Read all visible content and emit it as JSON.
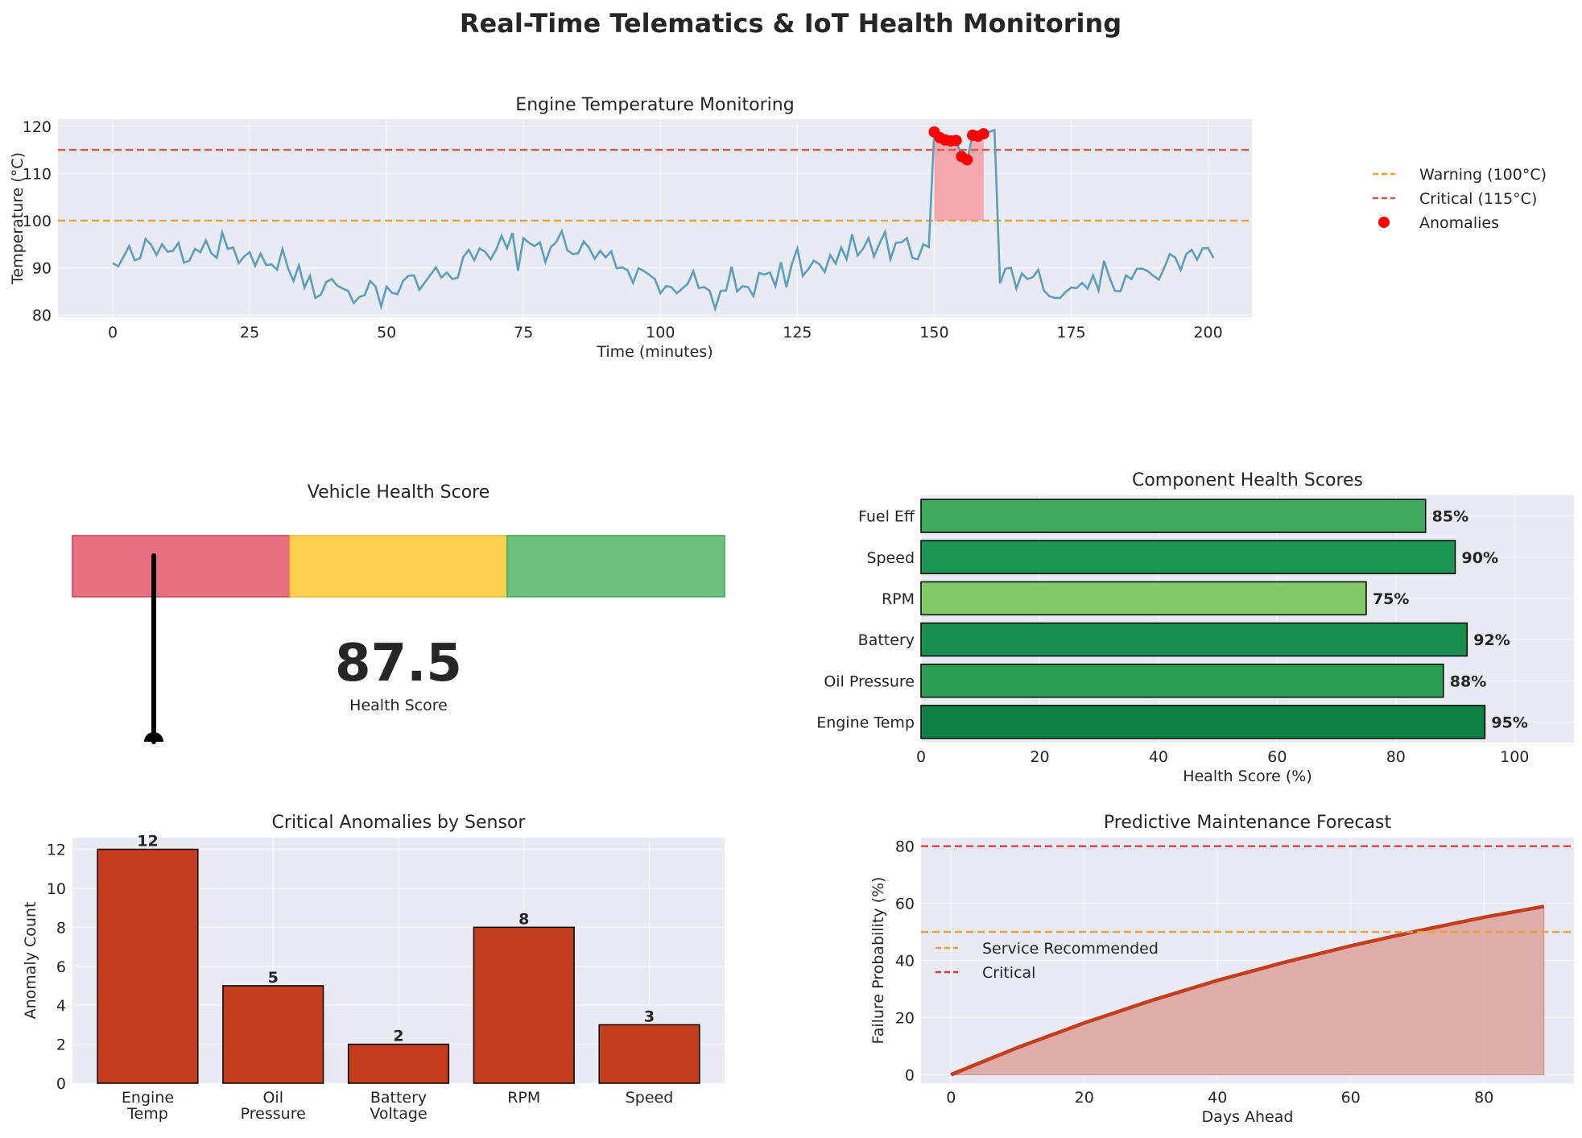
{
  "suptitle": "Real-Time Telematics & IoT Health Monitoring",
  "chart_data": [
    {
      "type": "line",
      "title": "Engine Temperature Monitoring",
      "xlabel": "Time (minutes)",
      "ylabel": "Temperature (°C)",
      "xlim": [
        -10,
        208
      ],
      "ylim": [
        79.5,
        121.5
      ],
      "xticks": [
        0,
        25,
        50,
        75,
        100,
        125,
        150,
        175,
        200
      ],
      "yticks": [
        80,
        90,
        100,
        110,
        120
      ],
      "grid": true,
      "legend_position": "top-right",
      "series_color": "#5b9fc0",
      "values": [
        91.0,
        90.3,
        92.4,
        94.6,
        91.6,
        92.0,
        96.1,
        94.9,
        92.7,
        95.0,
        93.4,
        93.6,
        95.3,
        91.1,
        91.5,
        94.0,
        93.3,
        95.8,
        93.1,
        92.1,
        97.5,
        94.0,
        94.3,
        91.0,
        92.4,
        93.3,
        90.4,
        93.0,
        90.6,
        90.7,
        89.6,
        94.0,
        89.9,
        87.2,
        90.5,
        85.8,
        88.3,
        83.6,
        84.3,
        87.0,
        87.6,
        86.2,
        85.6,
        85.1,
        82.5,
        83.8,
        84.2,
        87.2,
        86.0,
        81.8,
        86.0,
        84.7,
        84.4,
        87.2,
        88.3,
        88.4,
        85.3,
        86.9,
        88.5,
        90.1,
        87.9,
        89.0,
        87.6,
        87.9,
        92.3,
        93.8,
        91.6,
        94.1,
        93.4,
        91.8,
        93.8,
        96.8,
        94.1,
        97.4,
        89.4,
        96.3,
        95.3,
        94.6,
        95.4,
        91.2,
        94.4,
        95.5,
        97.8,
        93.7,
        92.9,
        93.1,
        95.6,
        94.2,
        91.9,
        93.6,
        92.2,
        93.5,
        89.9,
        90.1,
        89.5,
        86.8,
        89.9,
        89.3,
        88.5,
        87.6,
        84.6,
        86.1,
        85.9,
        84.6,
        85.6,
        86.6,
        89.3,
        85.7,
        85.9,
        85.1,
        81.3,
        85.1,
        85.2,
        90.2,
        85.0,
        86.1,
        85.9,
        84.0,
        88.9,
        88.6,
        89.0,
        86.1,
        91.2,
        85.9,
        90.8,
        94.1,
        88.3,
        89.7,
        91.5,
        90.8,
        89.1,
        92.7,
        90.9,
        94.3,
        91.8,
        97.1,
        92.6,
        94.0,
        96.3,
        92.4,
        95.1,
        97.6,
        91.8,
        95.3,
        95.4,
        96.3,
        92.1,
        91.8,
        95.0,
        94.4,
        118.8,
        117.6,
        117.1,
        116.9,
        117.0,
        113.6,
        112.9,
        118.1,
        117.9,
        118.4,
        118.8,
        119.2,
        86.7,
        89.8,
        90.0,
        85.6,
        88.8,
        87.6,
        88.0,
        89.6,
        85.2,
        84.0,
        83.6,
        83.6,
        84.9,
        85.8,
        85.7,
        86.8,
        85.6,
        88.4,
        85.2,
        91.5,
        87.9,
        85.1,
        85.0,
        88.4,
        87.6,
        89.8,
        89.8,
        89.3,
        88.3,
        87.5,
        90.0,
        92.9,
        92.2,
        89.5,
        92.9,
        93.8,
        91.7,
        94.1,
        94.2,
        92.1
      ],
      "threshold_lines": [
        {
          "name": "Warning (100°C)",
          "value": 100,
          "color": "#f0a035"
        },
        {
          "name": "Critical (115°C)",
          "value": 115,
          "color": "#d9574a"
        }
      ],
      "anomalies": {
        "name": "Anomalies",
        "x_start": 150,
        "x_end": 159,
        "color": "#ff0000"
      },
      "fill_between": {
        "y_base": 100,
        "x_start": 150,
        "x_end": 159,
        "color": "#f4a3a8"
      }
    },
    {
      "type": "gauge",
      "title": "Vehicle Health Score",
      "value": 87.5,
      "value_text": "87.5",
      "label": "Health Score",
      "bands": [
        {
          "color": "#e8707e",
          "edge": "#c94050"
        },
        {
          "color": "#fed052",
          "edge": "#e7b636"
        },
        {
          "color": "#6ac27c",
          "edge": "#3aa652"
        }
      ]
    },
    {
      "type": "bar",
      "orientation": "horizontal",
      "title": "Component Health Scores",
      "xlabel": "Health Score (%)",
      "xlim": [
        0,
        110
      ],
      "xticks": [
        0,
        20,
        40,
        60,
        80,
        100
      ],
      "categories": [
        "Engine Temp",
        "Oil Pressure",
        "Battery",
        "RPM",
        "Speed",
        "Fuel Eff"
      ],
      "values": [
        95,
        88,
        92,
        75,
        90,
        85
      ],
      "labels": [
        "95%",
        "88%",
        "92%",
        "75%",
        "90%",
        "85%"
      ],
      "colors": [
        "#0d8144",
        "#2a9f53",
        "#188f4e",
        "#83c96a",
        "#1b9552",
        "#41aa5d"
      ]
    },
    {
      "type": "bar",
      "title": "Critical Anomalies by Sensor",
      "ylabel": "Anomaly Count",
      "ylim": [
        0,
        12.6
      ],
      "yticks": [
        0,
        2,
        4,
        6,
        8,
        10,
        12
      ],
      "categories": [
        [
          "Engine",
          "Temp"
        ],
        [
          "Oil",
          "Pressure"
        ],
        [
          "Battery",
          "Voltage"
        ],
        [
          "RPM"
        ],
        [
          "Speed"
        ]
      ],
      "values": [
        12,
        5,
        2,
        8,
        3
      ],
      "labels": [
        "12",
        "5",
        "2",
        "8",
        "3"
      ],
      "color": "#c43d1c"
    },
    {
      "type": "area",
      "title": "Predictive Maintenance Forecast",
      "xlabel": "Days Ahead",
      "ylabel": "Failure Probability (%)",
      "xlim": [
        -4.5,
        93.5
      ],
      "ylim": [
        -3,
        83
      ],
      "xticks": [
        0,
        20,
        40,
        60,
        80
      ],
      "yticks": [
        0,
        20,
        40,
        60,
        80
      ],
      "x": [
        0,
        10,
        20,
        30,
        40,
        50,
        60,
        70,
        80,
        89
      ],
      "values": [
        0,
        9.5,
        18.1,
        25.9,
        33.0,
        39.3,
        45.1,
        50.3,
        55.1,
        58.9
      ],
      "line_color": "#c43d1c",
      "fill_color": "#dca39c",
      "legend_position": "center-left",
      "threshold_lines": [
        {
          "name": "Service Recommended",
          "value": 50,
          "color": "#f0a035"
        },
        {
          "name": "Critical",
          "value": 80,
          "color": "#e33d3d"
        }
      ]
    }
  ]
}
